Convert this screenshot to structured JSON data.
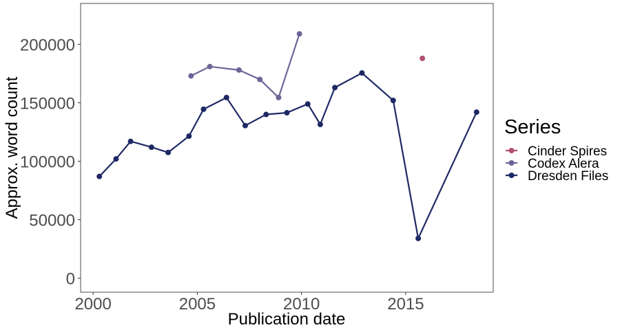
{
  "chart_data": {
    "type": "line",
    "xlabel": "Publication date",
    "ylabel": "Approx. word count",
    "xlim": [
      1999.4,
      2019.2
    ],
    "ylim": [
      -12000,
      235000
    ],
    "x_ticks": [
      2000,
      2005,
      2010,
      2015
    ],
    "y_ticks": [
      0,
      50000,
      100000,
      150000,
      200000
    ],
    "x_tick_labels": [
      "2000",
      "2005",
      "2010",
      "2015"
    ],
    "y_tick_labels": [
      "0",
      "50000",
      "100000",
      "150000",
      "200000"
    ],
    "grid": false,
    "legend": {
      "title": "Series",
      "placement": "right"
    },
    "series": [
      {
        "name": "Cinder Spires",
        "color": "#b4506e",
        "points": [
          [
            2015.8,
            188000
          ]
        ]
      },
      {
        "name": "Codex Alera",
        "color": "#6e6496",
        "points": [
          [
            2004.7,
            173000
          ],
          [
            2005.6,
            181000
          ],
          [
            2007.0,
            178000
          ],
          [
            2008.0,
            170000
          ],
          [
            2008.9,
            154500
          ],
          [
            2009.9,
            209000
          ]
        ]
      },
      {
        "name": "Dresden Files",
        "color": "#1e2864",
        "points": [
          [
            2000.3,
            87000
          ],
          [
            2001.1,
            102000
          ],
          [
            2001.8,
            117000
          ],
          [
            2002.8,
            112000
          ],
          [
            2003.6,
            107500
          ],
          [
            2004.6,
            121500
          ],
          [
            2005.3,
            144500
          ],
          [
            2006.4,
            154500
          ],
          [
            2007.3,
            130500
          ],
          [
            2008.3,
            140000
          ],
          [
            2009.3,
            141500
          ],
          [
            2010.3,
            149000
          ],
          [
            2010.9,
            131500
          ],
          [
            2011.6,
            163000
          ],
          [
            2012.9,
            175500
          ],
          [
            2014.4,
            152000
          ],
          [
            2015.6,
            34000
          ],
          [
            2018.4,
            142000
          ]
        ]
      }
    ]
  }
}
